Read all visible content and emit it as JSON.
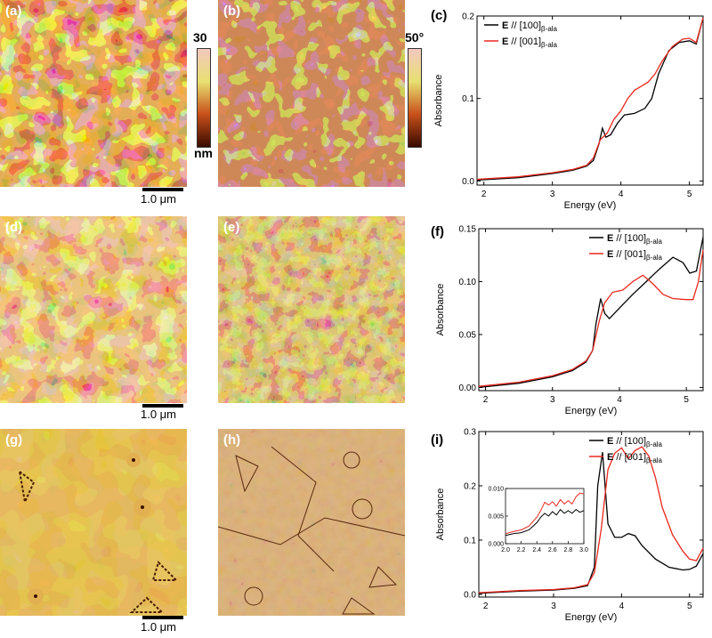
{
  "panels": {
    "a": {
      "label": "(a)"
    },
    "b": {
      "label": "(b)"
    },
    "c": {
      "label": "(c)"
    },
    "d": {
      "label": "(d)"
    },
    "e": {
      "label": "(e)"
    },
    "f": {
      "label": "(f)"
    },
    "g": {
      "label": "(g)"
    },
    "h": {
      "label": "(h)"
    },
    "i": {
      "label": "(i)"
    }
  },
  "scalebar_label": "1.0 μm",
  "colorbar_height": {
    "max": "30",
    "unit": "nm"
  },
  "colorbar_phase": {
    "max": "50°"
  },
  "colors": {
    "black": "#000000",
    "red": "#e8281e",
    "afm_low": "#3a0a00",
    "afm_mid": "#c8501a",
    "afm_high": "#e8e070",
    "afm_peak": "#f2c8c0"
  },
  "chart_data": [
    {
      "type": "line",
      "panel": "c",
      "xlabel": "Energy (eV)",
      "ylabel": "Absorbance",
      "xlim": [
        1.9,
        5.2
      ],
      "ylim": [
        -0.005,
        0.2
      ],
      "xticks": [
        2,
        3,
        4,
        5
      ],
      "yticks": [
        0.0,
        0.1,
        0.2
      ],
      "yticklabels": [
        "0.0",
        "0.1",
        "0.2"
      ],
      "legend_position": "top-left",
      "series": [
        {
          "name": "E // [100]β-ala",
          "color": "#000000",
          "x": [
            1.9,
            2.5,
            3.0,
            3.3,
            3.5,
            3.6,
            3.68,
            3.73,
            3.78,
            3.85,
            3.95,
            4.05,
            4.2,
            4.35,
            4.45,
            4.55,
            4.7,
            4.85,
            5.0,
            5.1,
            5.2
          ],
          "y": [
            0.001,
            0.004,
            0.009,
            0.013,
            0.018,
            0.025,
            0.045,
            0.064,
            0.053,
            0.056,
            0.07,
            0.08,
            0.082,
            0.088,
            0.1,
            0.13,
            0.158,
            0.168,
            0.17,
            0.166,
            0.198
          ]
        },
        {
          "name": "E // [001]β-ala",
          "color": "#e8281e",
          "x": [
            1.9,
            2.5,
            3.0,
            3.3,
            3.5,
            3.6,
            3.7,
            3.8,
            3.9,
            4.0,
            4.1,
            4.2,
            4.3,
            4.4,
            4.5,
            4.6,
            4.75,
            4.9,
            5.0,
            5.1,
            5.2
          ],
          "y": [
            0.002,
            0.005,
            0.01,
            0.014,
            0.019,
            0.028,
            0.05,
            0.058,
            0.075,
            0.085,
            0.1,
            0.11,
            0.115,
            0.12,
            0.13,
            0.145,
            0.163,
            0.172,
            0.173,
            0.168,
            0.198
          ]
        }
      ]
    },
    {
      "type": "line",
      "panel": "f",
      "xlabel": "Energy (eV)",
      "ylabel": "Absorbance",
      "xlim": [
        1.9,
        5.25
      ],
      "ylim": [
        -0.003,
        0.15
      ],
      "xticks": [
        2,
        3,
        4,
        5
      ],
      "yticks": [
        0.0,
        0.05,
        0.1,
        0.15
      ],
      "yticklabels": [
        "0.00",
        "0.05",
        "0.10",
        "0.15"
      ],
      "legend_position": "top-right",
      "series": [
        {
          "name": "E // [100]β-ala",
          "color": "#000000",
          "x": [
            1.9,
            2.5,
            3.0,
            3.3,
            3.5,
            3.6,
            3.65,
            3.72,
            3.78,
            3.85,
            4.0,
            4.2,
            4.4,
            4.6,
            4.8,
            4.95,
            5.05,
            5.15,
            5.25
          ],
          "y": [
            0.0,
            0.004,
            0.01,
            0.016,
            0.024,
            0.035,
            0.06,
            0.084,
            0.07,
            0.065,
            0.075,
            0.088,
            0.1,
            0.112,
            0.123,
            0.118,
            0.108,
            0.11,
            0.142
          ]
        },
        {
          "name": "E // [001]β-ala",
          "color": "#e8281e",
          "x": [
            1.9,
            2.5,
            3.0,
            3.3,
            3.5,
            3.6,
            3.7,
            3.78,
            3.9,
            4.05,
            4.2,
            4.35,
            4.5,
            4.65,
            4.8,
            5.0,
            5.1,
            5.18,
            5.25
          ],
          "y": [
            0.001,
            0.005,
            0.011,
            0.017,
            0.025,
            0.035,
            0.063,
            0.08,
            0.09,
            0.092,
            0.1,
            0.106,
            0.098,
            0.088,
            0.084,
            0.083,
            0.083,
            0.1,
            0.13
          ]
        }
      ]
    },
    {
      "type": "line",
      "panel": "i",
      "xlabel": "Energy (eV)",
      "ylabel": "Absorbance",
      "xlim": [
        1.9,
        5.2
      ],
      "ylim": [
        -0.005,
        0.3
      ],
      "xticks": [
        2,
        3,
        4,
        5
      ],
      "yticks": [
        0.0,
        0.1,
        0.2,
        0.3
      ],
      "yticklabels": [
        "0.0",
        "0.1",
        "0.2",
        "0.3"
      ],
      "legend_position": "top-right",
      "series": [
        {
          "name": "E // [100]β-ala",
          "color": "#000000",
          "x": [
            1.9,
            2.5,
            3.0,
            3.3,
            3.5,
            3.6,
            3.65,
            3.72,
            3.8,
            3.9,
            4.0,
            4.1,
            4.2,
            4.3,
            4.5,
            4.7,
            4.9,
            5.0,
            5.1,
            5.2
          ],
          "y": [
            0.002,
            0.006,
            0.008,
            0.011,
            0.016,
            0.05,
            0.2,
            0.262,
            0.13,
            0.105,
            0.105,
            0.112,
            0.108,
            0.09,
            0.065,
            0.05,
            0.045,
            0.046,
            0.052,
            0.075
          ]
        },
        {
          "name": "E // [001]β-ala",
          "color": "#e8281e",
          "x": [
            1.9,
            2.5,
            3.0,
            3.3,
            3.5,
            3.6,
            3.7,
            3.8,
            3.9,
            4.0,
            4.1,
            4.2,
            4.3,
            4.4,
            4.5,
            4.6,
            4.75,
            4.9,
            5.0,
            5.1,
            5.2
          ],
          "y": [
            0.003,
            0.007,
            0.009,
            0.012,
            0.018,
            0.04,
            0.12,
            0.23,
            0.26,
            0.27,
            0.25,
            0.265,
            0.272,
            0.255,
            0.215,
            0.16,
            0.11,
            0.08,
            0.065,
            0.062,
            0.085
          ]
        }
      ],
      "inset": {
        "xlim": [
          2.0,
          3.0
        ],
        "ylim": [
          0.0,
          0.01
        ],
        "xticks": [
          2.0,
          2.2,
          2.4,
          2.6,
          2.8,
          3.0
        ],
        "xticklabels": [
          "2.0",
          "2.2",
          "2.4",
          "2.6",
          "2.8",
          "3.0"
        ],
        "yticks": [
          0.0,
          0.005,
          0.01
        ],
        "yticklabels": [
          "0.000",
          "0.005",
          "0.010"
        ],
        "series": [
          {
            "color": "#000000",
            "x": [
              2.0,
              2.1,
              2.2,
              2.3,
              2.4,
              2.45,
              2.5,
              2.55,
              2.6,
              2.65,
              2.7,
              2.75,
              2.8,
              2.85,
              2.9,
              2.95,
              3.0
            ],
            "y": [
              0.0015,
              0.0018,
              0.002,
              0.0025,
              0.0038,
              0.0048,
              0.0055,
              0.005,
              0.0058,
              0.0052,
              0.0062,
              0.0055,
              0.006,
              0.0055,
              0.0062,
              0.0057,
              0.006
            ]
          },
          {
            "color": "#e8281e",
            "x": [
              2.0,
              2.1,
              2.2,
              2.3,
              2.4,
              2.45,
              2.5,
              2.55,
              2.6,
              2.65,
              2.7,
              2.75,
              2.8,
              2.85,
              2.9,
              2.95,
              3.0
            ],
            "y": [
              0.0018,
              0.0022,
              0.0025,
              0.0032,
              0.0048,
              0.006,
              0.0075,
              0.007,
              0.0076,
              0.0068,
              0.008,
              0.0072,
              0.0078,
              0.0072,
              0.0085,
              0.0092,
              0.009
            ]
          }
        ]
      }
    }
  ]
}
